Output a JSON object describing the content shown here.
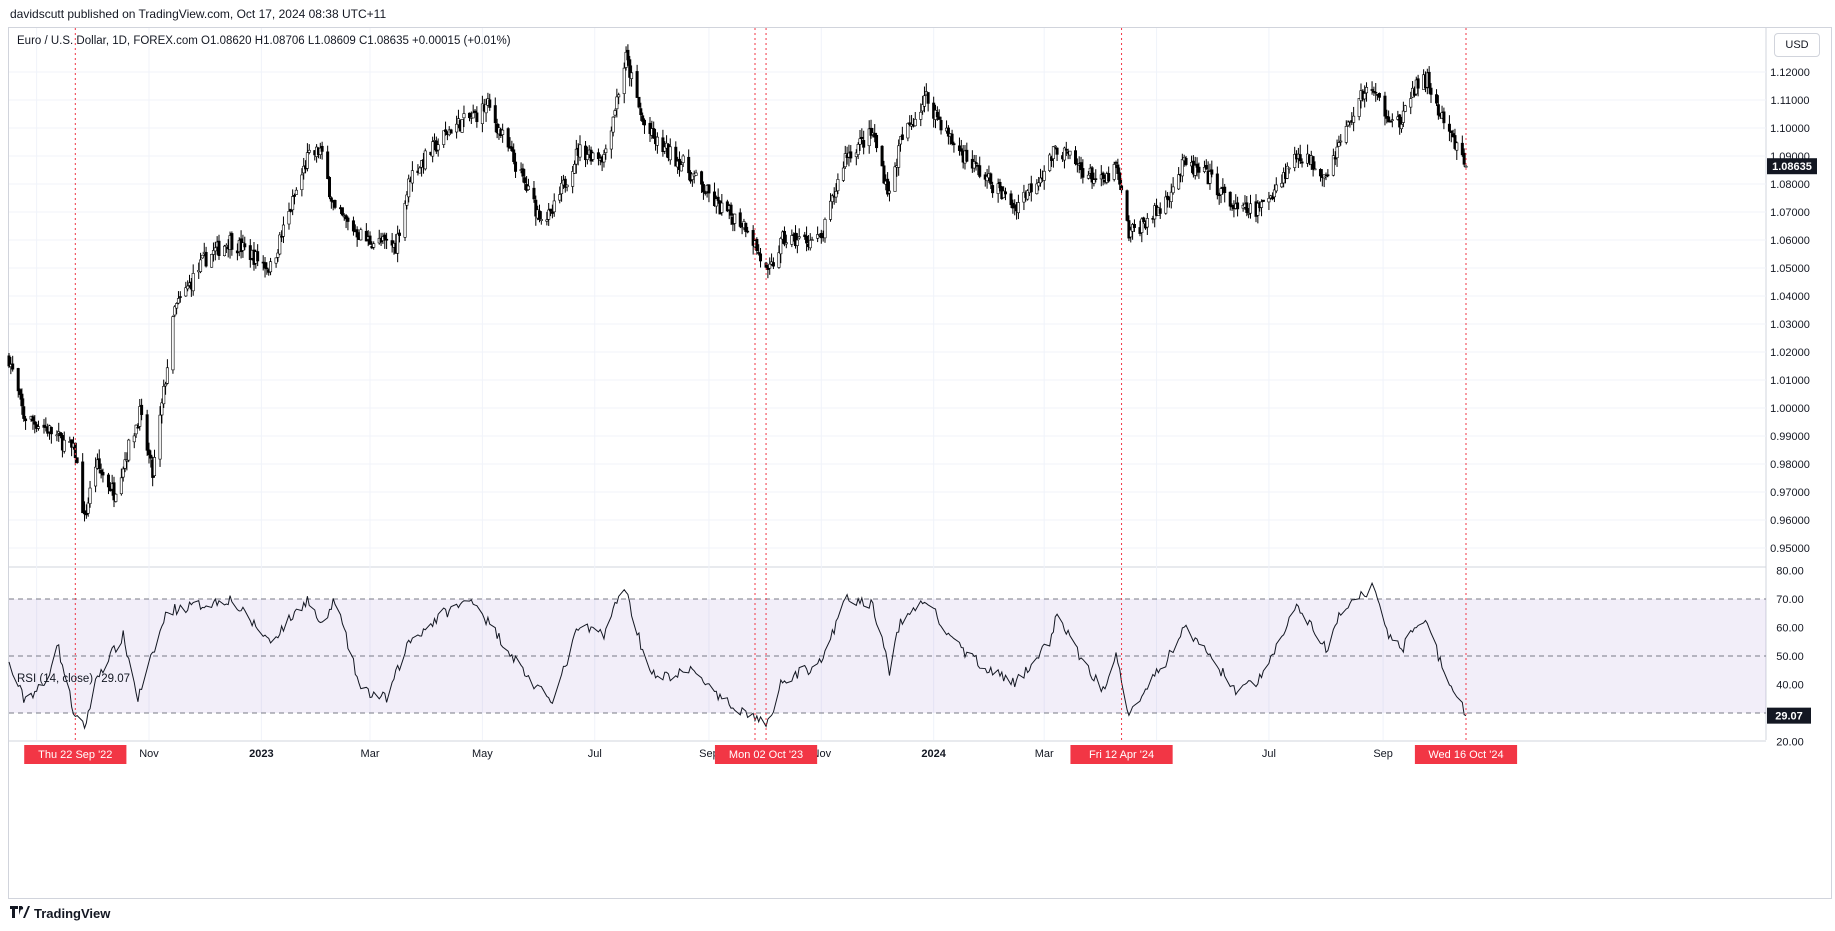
{
  "header": {
    "published": "davidscutt published on TradingView.com, Oct 17, 2024 08:38 UTC+11",
    "symbol_line": "Euro / U.S. Dollar, 1D, FOREX.com  O1.08620  H1.08706  L1.08609  C1.08635  +0.00015 (+0.01%)",
    "currency_button": "USD"
  },
  "rsi": {
    "legend": "RSI (14, close)",
    "value": "29.07",
    "value_label": "29.07"
  },
  "footer": {
    "brand": "TradingView"
  },
  "colors": {
    "candle_up": "#ffffff",
    "candle_down": "#000000",
    "candle_outline": "#000000",
    "marker_line": "#f23645",
    "marker_label_bg": "#f23645",
    "rsi_band": "#7e57c2",
    "last_price_bg": "#131722"
  },
  "chart_data": [
    {
      "type": "candlestick",
      "title": "Euro / U.S. Dollar, 1D, FOREX.com",
      "ylim": [
        0.945,
        1.127
      ],
      "y_ticks": [
        "1.12000",
        "1.11000",
        "1.10000",
        "1.09000",
        "1.08000",
        "1.07000",
        "1.06000",
        "1.05000",
        "1.04000",
        "1.03000",
        "1.02000",
        "1.01000",
        "1.00000",
        "0.99000",
        "0.98000",
        "0.97000",
        "0.96000",
        "0.95000"
      ],
      "x_ticks": [
        "Sep",
        "Nov",
        "2023",
        "Mar",
        "May",
        "Jul",
        "Sep",
        "Nov",
        "2024",
        "Mar",
        "May",
        "Jul",
        "Sep"
      ],
      "last_price_label": "1.08635",
      "close_path_dates": [
        "2022-08-17",
        "2022-08-25",
        "2022-09-06",
        "2022-09-22",
        "2022-09-27",
        "2022-10-03",
        "2022-10-13",
        "2022-10-27",
        "2022-11-03",
        "2022-11-15",
        "2022-12-01",
        "2022-12-15",
        "2023-01-06",
        "2023-01-26",
        "2023-02-02",
        "2023-02-10",
        "2023-02-27",
        "2023-03-15",
        "2023-03-23",
        "2023-04-14",
        "2023-04-26",
        "2023-05-04",
        "2023-05-31",
        "2023-06-07",
        "2023-06-22",
        "2023-07-06",
        "2023-07-18",
        "2023-07-27",
        "2023-08-03",
        "2023-08-18",
        "2023-09-06",
        "2023-09-22",
        "2023-10-03",
        "2023-10-11",
        "2023-10-23",
        "2023-11-01",
        "2023-11-14",
        "2023-11-29",
        "2023-12-08",
        "2023-12-14",
        "2023-12-28",
        "2024-01-11",
        "2024-01-25",
        "2024-02-14",
        "2024-03-01",
        "2024-03-08",
        "2024-03-20",
        "2024-04-02",
        "2024-04-09",
        "2024-04-16",
        "2024-05-03",
        "2024-05-16",
        "2024-05-30",
        "2024-06-14",
        "2024-06-26",
        "2024-07-17",
        "2024-08-01",
        "2024-08-08",
        "2024-08-23",
        "2024-09-04",
        "2024-09-11",
        "2024-09-17",
        "2024-09-25",
        "2024-10-02",
        "2024-10-10",
        "2024-10-16"
      ],
      "close_path_values": [
        1.018,
        0.997,
        0.993,
        0.984,
        0.96,
        0.98,
        0.97,
        0.998,
        0.976,
        1.035,
        1.053,
        1.06,
        1.05,
        1.089,
        1.092,
        1.07,
        1.06,
        1.058,
        1.083,
        1.1,
        1.104,
        1.108,
        1.07,
        1.068,
        1.092,
        1.09,
        1.125,
        1.102,
        1.095,
        1.087,
        1.072,
        1.065,
        1.047,
        1.06,
        1.06,
        1.06,
        1.09,
        1.098,
        1.076,
        1.095,
        1.111,
        1.095,
        1.085,
        1.072,
        1.085,
        1.093,
        1.086,
        1.08,
        1.086,
        1.062,
        1.071,
        1.087,
        1.082,
        1.07,
        1.071,
        1.091,
        1.084,
        1.094,
        1.115,
        1.105,
        1.101,
        1.114,
        1.117,
        1.104,
        1.094,
        1.08635
      ]
    },
    {
      "type": "line",
      "title": "RSI (14, close)",
      "ylim": [
        20,
        80
      ],
      "y_ticks": [
        "80.00",
        "70.00",
        "60.00",
        "50.00",
        "40.00",
        "20.00"
      ],
      "band": [
        30,
        70
      ],
      "midline": 50,
      "path_dates": [
        "2022-08-17",
        "2022-08-25",
        "2022-09-06",
        "2022-09-12",
        "2022-09-22",
        "2022-09-27",
        "2022-10-04",
        "2022-10-18",
        "2022-10-26",
        "2022-11-11",
        "2022-11-30",
        "2022-12-15",
        "2023-01-06",
        "2023-01-26",
        "2023-02-03",
        "2023-02-10",
        "2023-02-24",
        "2023-03-10",
        "2023-03-22",
        "2023-04-10",
        "2023-04-26",
        "2023-05-04",
        "2023-05-31",
        "2023-06-09",
        "2023-06-22",
        "2023-07-06",
        "2023-07-17",
        "2023-07-27",
        "2023-08-03",
        "2023-08-25",
        "2023-09-06",
        "2023-09-22",
        "2023-10-03",
        "2023-10-11",
        "2023-10-24",
        "2023-11-03",
        "2023-11-14",
        "2023-11-29",
        "2023-12-08",
        "2023-12-14",
        "2023-12-28",
        "2024-01-11",
        "2024-01-25",
        "2024-02-14",
        "2024-03-04",
        "2024-03-08",
        "2024-03-21",
        "2024-04-02",
        "2024-04-09",
        "2024-04-16",
        "2024-05-06",
        "2024-05-16",
        "2024-05-30",
        "2024-06-14",
        "2024-06-26",
        "2024-07-17",
        "2024-08-01",
        "2024-08-08",
        "2024-08-26",
        "2024-09-04",
        "2024-09-11",
        "2024-09-17",
        "2024-09-25",
        "2024-10-02",
        "2024-10-10",
        "2024-10-16"
      ],
      "path_values": [
        47,
        35,
        40,
        55,
        28,
        25,
        43,
        57,
        35,
        66,
        68,
        70,
        55,
        70,
        60,
        70,
        38,
        35,
        55,
        65,
        70,
        62,
        38,
        35,
        60,
        58,
        75,
        52,
        42,
        45,
        35,
        30,
        26,
        42,
        45,
        50,
        70,
        68,
        45,
        62,
        70,
        55,
        48,
        40,
        55,
        65,
        49,
        38,
        52,
        30,
        48,
        60,
        50,
        37,
        42,
        68,
        52,
        64,
        74,
        58,
        52,
        60,
        62,
        48,
        38,
        29.07
      ]
    }
  ],
  "markers": [
    {
      "date": "2022-09-22",
      "label": "Thu 22 Sep '22"
    },
    {
      "date": "2023-09-26",
      "label": "M"
    },
    {
      "date": "2023-10-02",
      "label": "Mon 02 Oct '23"
    },
    {
      "date": "2024-04-12",
      "label": "Fri 12 Apr '24"
    },
    {
      "date": "2024-10-16",
      "label": "Wed 16 Oct '24"
    }
  ]
}
